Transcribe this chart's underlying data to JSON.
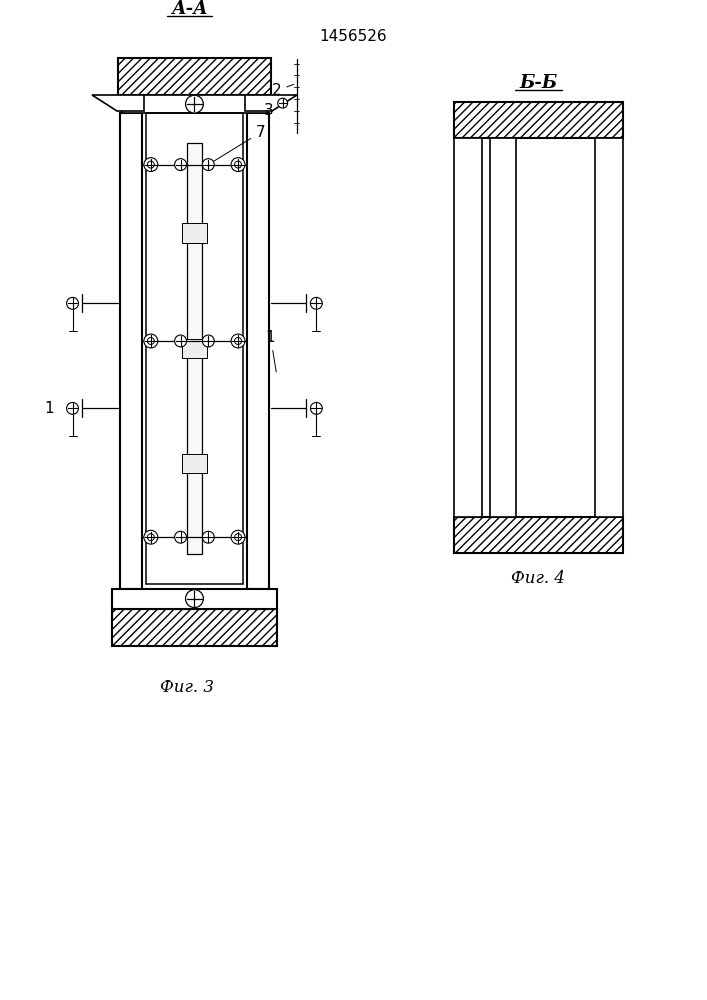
{
  "title": "1456526",
  "fig3_label": "А-А",
  "fig3_caption": "Фиг. 3",
  "fig4_label": "Б-Б",
  "fig4_caption": "Фиг. 4",
  "bg_color": "#ffffff",
  "line_color": "#000000",
  "label_1a": "1",
  "label_1b": "1",
  "label_2": "2",
  "label_3": "3",
  "label_7": "7"
}
